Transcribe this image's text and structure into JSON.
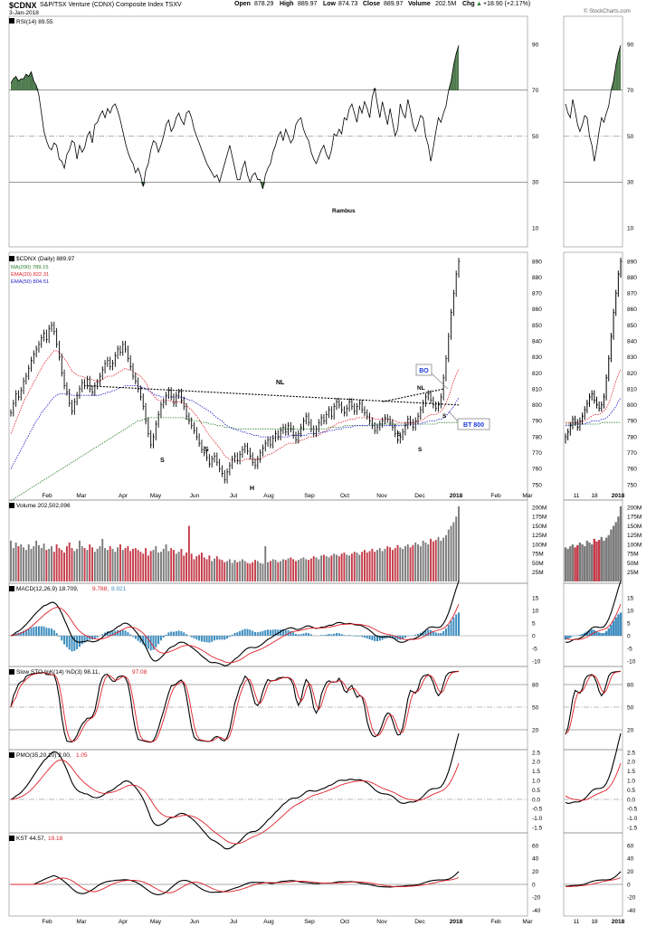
{
  "header": {
    "symbol": "$CDNX",
    "name": "S&P/TSX Venture (CDNX) Composite Index  TSXV",
    "date": "3-Jan-2018",
    "open_label": "Open",
    "open": "878.29",
    "high_label": "High",
    "high": "889.97",
    "low_label": "Low",
    "low": "874.73",
    "close_label": "Close",
    "close": "889.97",
    "volume_label": "Volume",
    "volume": "202.5M",
    "chg_label": "Chg",
    "chg": "+18.90 (+2.17%)",
    "chg_arrow": "▲",
    "watermark": "© StockCharts.com"
  },
  "rsi": {
    "label": "RSI(14) 89.55",
    "author": "Rambus",
    "ticks": [
      10,
      30,
      50,
      70,
      90
    ],
    "overbought": 70,
    "oversold": 30,
    "values": [
      73,
      75,
      76,
      74,
      75,
      75,
      77,
      76,
      78,
      74,
      72,
      68,
      60,
      52,
      48,
      45,
      44,
      47,
      46,
      40,
      39,
      36,
      42,
      44,
      48,
      47,
      40,
      46,
      43,
      45,
      50,
      52,
      47,
      55,
      56,
      59,
      61,
      58,
      62,
      60,
      63,
      64,
      61,
      57,
      52,
      47,
      43,
      40,
      38,
      34,
      36,
      33,
      28,
      35,
      38,
      44,
      48,
      47,
      43,
      46,
      50,
      55,
      57,
      52,
      54,
      58,
      60,
      57,
      55,
      60,
      61,
      58,
      53,
      50,
      47,
      44,
      41,
      38,
      36,
      34,
      32,
      33,
      30,
      34,
      38,
      42,
      46,
      41,
      36,
      31,
      31,
      36,
      39,
      33,
      30,
      33,
      34,
      31,
      31,
      27,
      33,
      36,
      38,
      43,
      46,
      50,
      52,
      48,
      53,
      50,
      47,
      49,
      55,
      57,
      58,
      53,
      50,
      48,
      43,
      40,
      38,
      41,
      44,
      46,
      42,
      40,
      44,
      51,
      50,
      53,
      51,
      58,
      57,
      62,
      64,
      60,
      56,
      63,
      60,
      65,
      62,
      58,
      67,
      71,
      64,
      58,
      65,
      60,
      55,
      62,
      56,
      50,
      53,
      64,
      60,
      58,
      66,
      61,
      55,
      52,
      55,
      59,
      58,
      50,
      46,
      39,
      45,
      52,
      58,
      56,
      60,
      63,
      70,
      74,
      81,
      86,
      89.55
    ]
  },
  "price": {
    "label": "$CDNX (Daily) 889.97",
    "ma200_label": "MA(200) 789.15",
    "ema20_label": "EMA(20) 822.31",
    "ema50_label": "EMA(50) 804.51",
    "ticks": [
      750,
      760,
      770,
      780,
      790,
      800,
      810,
      820,
      830,
      840,
      850,
      860,
      870,
      880,
      890
    ],
    "ylim": [
      745,
      893
    ],
    "close": [
      795,
      801,
      807,
      805,
      809,
      815,
      818,
      823,
      828,
      832,
      835,
      838,
      842,
      845,
      841,
      848,
      850,
      846,
      838,
      830,
      820,
      812,
      808,
      801,
      796,
      802,
      806,
      810,
      814,
      812,
      816,
      810,
      808,
      812,
      814,
      818,
      822,
      826,
      828,
      824,
      826,
      831,
      835,
      833,
      838,
      835,
      829,
      824,
      818,
      815,
      810,
      805,
      799,
      790,
      782,
      775,
      780,
      788,
      794,
      800,
      802,
      806,
      809,
      805,
      801,
      806,
      808,
      803,
      799,
      793,
      790,
      787,
      784,
      780,
      776,
      772,
      770,
      767,
      763,
      766,
      768,
      764,
      760,
      757,
      753,
      758,
      762,
      766,
      768,
      765,
      769,
      772,
      774,
      771,
      768,
      764,
      762,
      766,
      770,
      773,
      776,
      778,
      775,
      779,
      782,
      780,
      784,
      786,
      783,
      787,
      785,
      781,
      778,
      782,
      786,
      790,
      793,
      789,
      785,
      782,
      785,
      789,
      792,
      790,
      794,
      797,
      793,
      799,
      802,
      800,
      797,
      795,
      798,
      802,
      799,
      796,
      799,
      801,
      797,
      795,
      793,
      790,
      787,
      784,
      786,
      788,
      790,
      792,
      791,
      789,
      786,
      782,
      778,
      780,
      783,
      787,
      791,
      789,
      786,
      790,
      793,
      797,
      801,
      805,
      807,
      803,
      800,
      798,
      800,
      805,
      817,
      829,
      843,
      858,
      870,
      882,
      889.97
    ],
    "ema20": [
      782,
      786,
      790,
      794,
      798,
      802,
      805,
      808,
      811,
      814,
      817,
      820,
      823,
      826,
      828,
      830,
      832,
      834,
      834,
      833,
      831,
      829,
      827,
      824,
      821,
      820,
      819,
      818,
      818,
      817,
      817,
      816,
      816,
      815,
      815,
      815,
      816,
      817,
      818,
      818,
      818,
      819,
      820,
      821,
      822,
      823,
      822,
      822,
      821,
      820,
      819,
      818,
      816,
      814,
      811,
      808,
      806,
      804,
      803,
      803,
      803,
      803,
      803,
      802,
      802,
      802,
      802,
      802,
      801,
      800,
      798,
      797,
      795,
      793,
      791,
      788,
      786,
      783,
      781,
      779,
      777,
      775,
      773,
      771,
      768,
      767,
      766,
      765,
      765,
      765,
      765,
      765,
      766,
      766,
      766,
      766,
      766,
      766,
      766,
      767,
      768,
      769,
      769,
      770,
      771,
      772,
      773,
      774,
      775,
      776,
      776,
      776,
      776,
      777,
      778,
      778,
      779,
      780,
      780,
      780,
      781,
      781,
      782,
      783,
      784,
      785,
      786,
      787,
      788,
      789,
      789,
      790,
      790,
      791,
      791,
      791,
      792,
      792,
      792,
      792,
      792,
      792,
      792,
      791,
      791,
      791,
      791,
      791,
      791,
      791,
      790,
      790,
      789,
      789,
      789,
      789,
      789,
      789,
      789,
      789,
      790,
      790,
      791,
      792,
      793,
      794,
      794,
      794,
      795,
      796,
      798,
      801,
      805,
      810,
      815,
      819,
      822.31
    ],
    "ema50": [
      760,
      763,
      766,
      769,
      772,
      775,
      778,
      781,
      784,
      787,
      790,
      792,
      795,
      797,
      799,
      801,
      803,
      805,
      806,
      807,
      807,
      807,
      807,
      807,
      806,
      806,
      806,
      806,
      806,
      806,
      806,
      806,
      806,
      806,
      806,
      806,
      807,
      807,
      808,
      808,
      809,
      809,
      810,
      811,
      811,
      812,
      812,
      812,
      812,
      812,
      812,
      811,
      811,
      810,
      809,
      808,
      807,
      806,
      806,
      805,
      805,
      805,
      805,
      805,
      805,
      805,
      805,
      805,
      804,
      804,
      803,
      803,
      802,
      801,
      800,
      799,
      798,
      797,
      796,
      795,
      793,
      792,
      791,
      790,
      788,
      787,
      786,
      785,
      785,
      784,
      784,
      783,
      783,
      782,
      782,
      781,
      781,
      781,
      780,
      780,
      780,
      780,
      780,
      780,
      780,
      780,
      780,
      780,
      780,
      780,
      781,
      781,
      781,
      781,
      781,
      781,
      781,
      782,
      782,
      782,
      782,
      782,
      783,
      783,
      783,
      784,
      784,
      784,
      785,
      785,
      785,
      786,
      786,
      786,
      786,
      787,
      787,
      787,
      787,
      787,
      787,
      787,
      787,
      787,
      787,
      787,
      787,
      787,
      787,
      787,
      787,
      787,
      787,
      787,
      787,
      787,
      788,
      788,
      788,
      788,
      788,
      788,
      789,
      789,
      790,
      790,
      790,
      790,
      791,
      791,
      792,
      793,
      795,
      797,
      799,
      802,
      804.51
    ],
    "ma200": [
      740,
      741,
      742,
      743,
      744,
      745,
      746,
      747,
      748,
      749,
      750,
      751,
      752,
      753,
      754,
      755,
      756,
      757,
      758,
      759,
      760,
      761,
      762,
      763,
      764,
      765,
      766,
      767,
      768,
      769,
      770,
      771,
      772,
      773,
      774,
      775,
      776,
      777,
      778,
      779,
      780,
      781,
      782,
      783,
      784,
      785,
      786,
      787,
      788,
      789,
      790,
      790,
      791,
      791,
      792,
      792,
      792,
      792,
      792,
      792,
      792,
      792,
      792,
      792,
      792,
      792,
      792,
      792,
      792,
      791,
      791,
      791,
      790,
      790,
      790,
      789,
      789,
      789,
      788,
      788,
      788,
      787,
      787,
      787,
      786,
      786,
      786,
      786,
      785,
      785,
      785,
      785,
      785,
      785,
      785,
      785,
      785,
      785,
      785,
      785,
      785,
      785,
      785,
      785,
      785,
      785,
      785,
      785,
      785,
      785,
      785,
      785,
      785,
      785,
      785,
      785,
      785,
      785,
      785,
      785,
      785,
      785,
      785,
      785,
      785,
      786,
      786,
      786,
      786,
      786,
      786,
      787,
      787,
      787,
      787,
      787,
      787,
      787,
      787,
      787,
      787,
      788,
      788,
      788,
      788,
      788,
      788,
      788,
      788,
      788,
      788,
      788,
      788,
      788,
      788,
      788,
      788,
      788,
      788,
      788,
      788,
      788,
      788,
      788,
      788,
      788,
      788,
      788,
      789,
      789,
      789,
      789,
      789,
      789,
      789,
      789,
      789.15
    ],
    "annotations": {
      "nl_top": "NL",
      "nl_small": "NL",
      "s1": "S",
      "s2": "S",
      "h": "H",
      "s3": "S",
      "s4": "S",
      "s5": "S",
      "bo": "BO",
      "bt": "BT 800"
    },
    "neckline": {
      "from": [
        30,
        812
      ],
      "to": [
        176,
        800
      ]
    },
    "neckline_small": {
      "from": [
        146,
        802
      ],
      "to": [
        170,
        810
      ]
    }
  },
  "volume": {
    "label": "Volume 202,502,096",
    "ticks": [
      "25M",
      "50M",
      "75M",
      "100M",
      "125M",
      "150M",
      "175M",
      "200M"
    ],
    "tick_values": [
      25,
      50,
      75,
      100,
      125,
      150,
      175,
      200
    ],
    "values_m": [
      110,
      90,
      105,
      95,
      100,
      92,
      85,
      100,
      88,
      95,
      110,
      98,
      90,
      102,
      85,
      88,
      95,
      80,
      100,
      90,
      85,
      78,
      95,
      105,
      90,
      82,
      88,
      110,
      95,
      90,
      85,
      100,
      92,
      80,
      88,
      95,
      115,
      90,
      85,
      95,
      88,
      80,
      92,
      100,
      85,
      90,
      95,
      82,
      88,
      90,
      85,
      80,
      75,
      90,
      70,
      82,
      85,
      95,
      78,
      80,
      88,
      100,
      82,
      90,
      85,
      75,
      80,
      88,
      70,
      78,
      150,
      75,
      60,
      68,
      72,
      78,
      65,
      60,
      70,
      55,
      62,
      68,
      60,
      58,
      52,
      55,
      60,
      50,
      58,
      52,
      55,
      60,
      55,
      50,
      48,
      52,
      58,
      55,
      50,
      48,
      95,
      52,
      55,
      60,
      58,
      52,
      55,
      60,
      58,
      62,
      65,
      60,
      55,
      58,
      62,
      65,
      60,
      58,
      62,
      68,
      65,
      60,
      70,
      72,
      68,
      65,
      70,
      75,
      72,
      68,
      75,
      78,
      72,
      70,
      75,
      80,
      78,
      72,
      80,
      85,
      78,
      82,
      88,
      80,
      85,
      90,
      82,
      88,
      95,
      92,
      85,
      90,
      98,
      92,
      88,
      95,
      100,
      92,
      98,
      105,
      100,
      95,
      110,
      105,
      100,
      115,
      108,
      112,
      120,
      110,
      118,
      125,
      140,
      150,
      160,
      175,
      202.5
    ],
    "colors_up": "#7a7a7a",
    "colors_down": "#c43a48"
  },
  "macd": {
    "label": "MACD(12,26,9) 18.709, 9.788, 8.921",
    "label_macd": "MACD(12,26,9) 18.709,",
    "label_signal": "9.788,",
    "label_hist": "8.921",
    "ticks": [
      -10,
      -5,
      0,
      5,
      10,
      15
    ],
    "ylim": [
      -12,
      19
    ]
  },
  "sto": {
    "label_main": "Slow STO %K(14) %D(3) 98.11,",
    "label_d": "97.08",
    "ticks": [
      20,
      50,
      80
    ],
    "ylim": [
      10,
      100
    ]
  },
  "pmo": {
    "label_main": "PMO(35,20,10) 2.00,",
    "label_sig": "1.05",
    "ticks": [
      -1.5,
      -1.0,
      -0.5,
      0.0,
      0.5,
      1.0,
      1.5,
      2.0,
      2.5
    ],
    "tick_labels": [
      "-1.5",
      "-1.0",
      "-0.5",
      "0.0",
      "0.5",
      "1.0",
      "1.5",
      "2.0",
      "2.5"
    ],
    "ylim": [
      -1.8,
      2.7
    ]
  },
  "kst": {
    "label_main": "KST 44.57,",
    "label_sig": "19.18",
    "ticks": [
      -40,
      -20,
      0,
      20,
      40,
      60
    ],
    "ylim": [
      -45,
      75
    ]
  },
  "xaxis": {
    "months": [
      "Feb",
      "Mar",
      "Apr",
      "May",
      "Jun",
      "Jul",
      "Aug",
      "Sep",
      "Oct",
      "Nov",
      "Dec",
      "2018",
      "Feb",
      "Mar"
    ],
    "zoom_labels": [
      "11",
      "18",
      "2018"
    ]
  },
  "colors": {
    "black": "#000000",
    "red": "#e0212a",
    "green": "#2a7d2a",
    "blue": "#1a1ac8",
    "rsi_fill": "#4d7a4d",
    "hist": "#3d8dbf"
  }
}
